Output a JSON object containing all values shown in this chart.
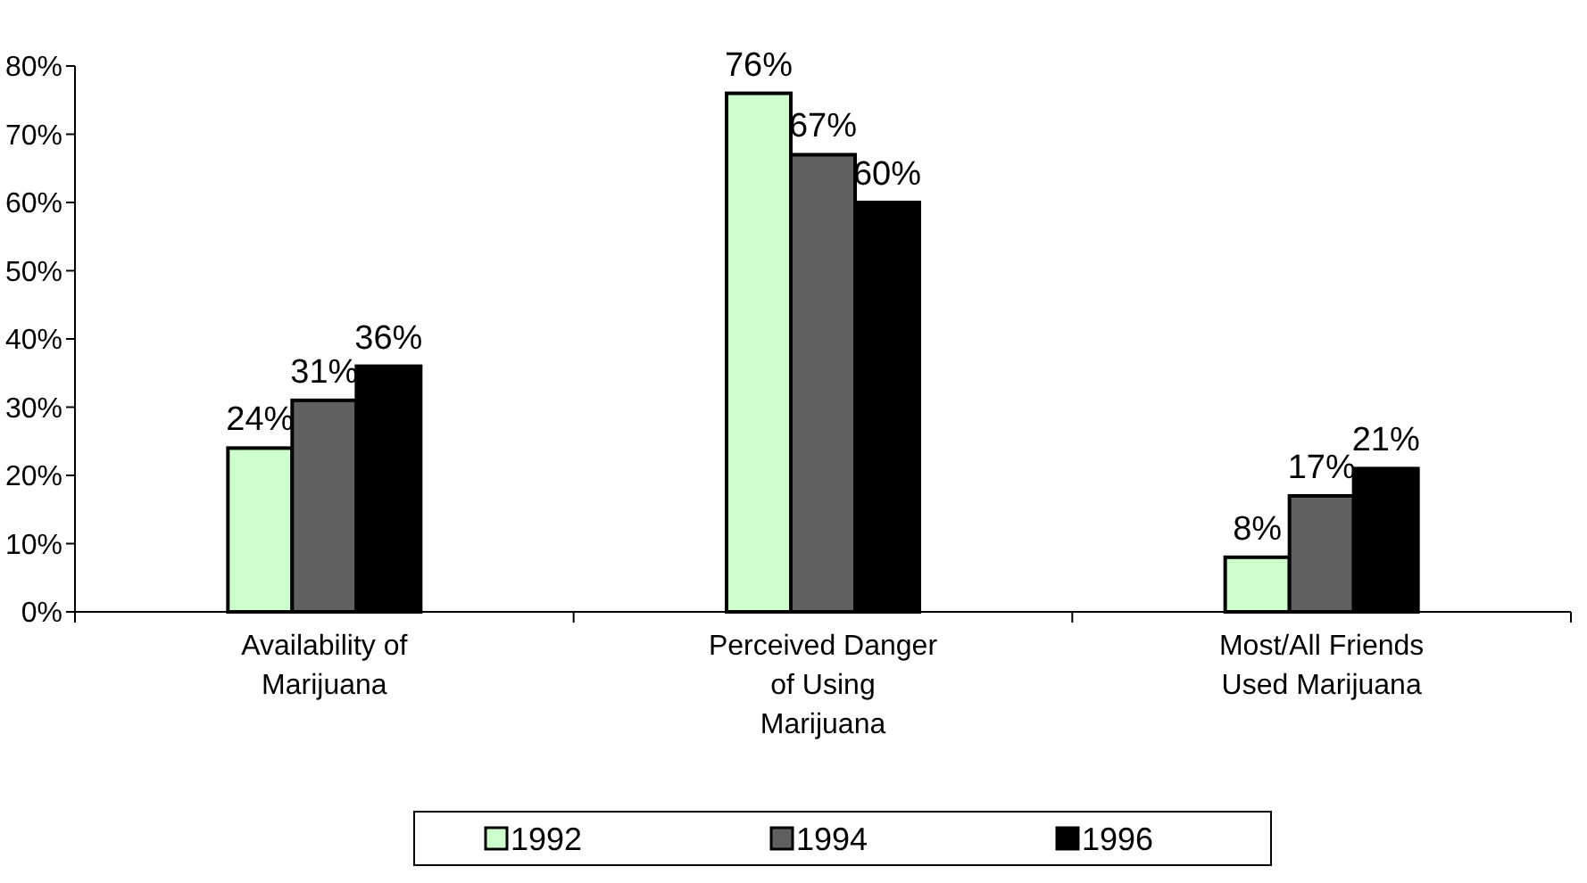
{
  "chart_data": {
    "type": "bar",
    "categories": [
      "Availability of Marijuana",
      "Perceived Danger of Using Marijuana",
      "Most/All Friends Used Marijuana"
    ],
    "series": [
      {
        "name": "1992",
        "color": "#ccffcc",
        "values": [
          24,
          76,
          8
        ],
        "value_labels": [
          "24%",
          "76%",
          "8%"
        ]
      },
      {
        "name": "1994",
        "color": "#606060",
        "values": [
          31,
          67,
          17
        ],
        "value_labels": [
          "31%",
          "67%",
          "17%"
        ]
      },
      {
        "name": "1996",
        "color": "#000000",
        "values": [
          36,
          60,
          21
        ],
        "value_labels": [
          "36%",
          "60%",
          "21%"
        ]
      }
    ],
    "ylim": [
      0,
      80
    ],
    "yticks": [
      {
        "value": 0,
        "label": "0%"
      },
      {
        "value": 10,
        "label": "10%"
      },
      {
        "value": 20,
        "label": "20%"
      },
      {
        "value": 30,
        "label": "30%"
      },
      {
        "value": 40,
        "label": "40%"
      },
      {
        "value": 50,
        "label": "50%"
      },
      {
        "value": 60,
        "label": "60%"
      },
      {
        "value": 70,
        "label": "70%"
      },
      {
        "value": 80,
        "label": "80%"
      }
    ],
    "grid": false,
    "legend": "bottom"
  }
}
